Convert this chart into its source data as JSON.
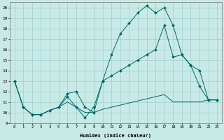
{
  "xlabel": "Humidex (Indice chaleur)",
  "xlim": [
    -0.5,
    23.5
  ],
  "ylim": [
    9,
    20.5
  ],
  "yticks": [
    9,
    10,
    11,
    12,
    13,
    14,
    15,
    16,
    17,
    18,
    19,
    20
  ],
  "xticks": [
    0,
    1,
    2,
    3,
    4,
    5,
    6,
    7,
    8,
    9,
    10,
    11,
    12,
    13,
    14,
    15,
    16,
    17,
    18,
    19,
    20,
    21,
    22,
    23
  ],
  "bg_color": "#c8eae6",
  "grid_color": "#a0cccc",
  "line_color": "#006666",
  "line1_y": [
    13,
    10.5,
    9.8,
    9.8,
    10.2,
    10.5,
    11.5,
    10.5,
    9.5,
    10.5,
    13.0,
    15.5,
    17.5,
    18.5,
    19.5,
    20.2,
    19.5,
    20.0,
    18.3,
    15.5,
    14.5,
    12.5,
    11.2,
    11.2
  ],
  "line2_y": [
    13,
    10.5,
    9.8,
    9.8,
    10.2,
    10.5,
    11.8,
    12.0,
    10.5,
    10.0,
    13.0,
    13.5,
    14.0,
    14.5,
    15.0,
    15.5,
    16.0,
    18.3,
    15.3,
    15.5,
    14.5,
    14.0,
    11.2,
    11.2
  ],
  "line3_y": [
    13,
    10.5,
    9.8,
    9.8,
    10.2,
    10.5,
    11.0,
    10.5,
    10.0,
    10.0,
    10.3,
    10.5,
    10.7,
    10.9,
    11.1,
    11.3,
    11.5,
    11.7,
    11.0,
    11.0,
    11.0,
    11.0,
    11.2,
    11.2
  ],
  "figwidth": 3.2,
  "figheight": 2.0,
  "dpi": 100
}
